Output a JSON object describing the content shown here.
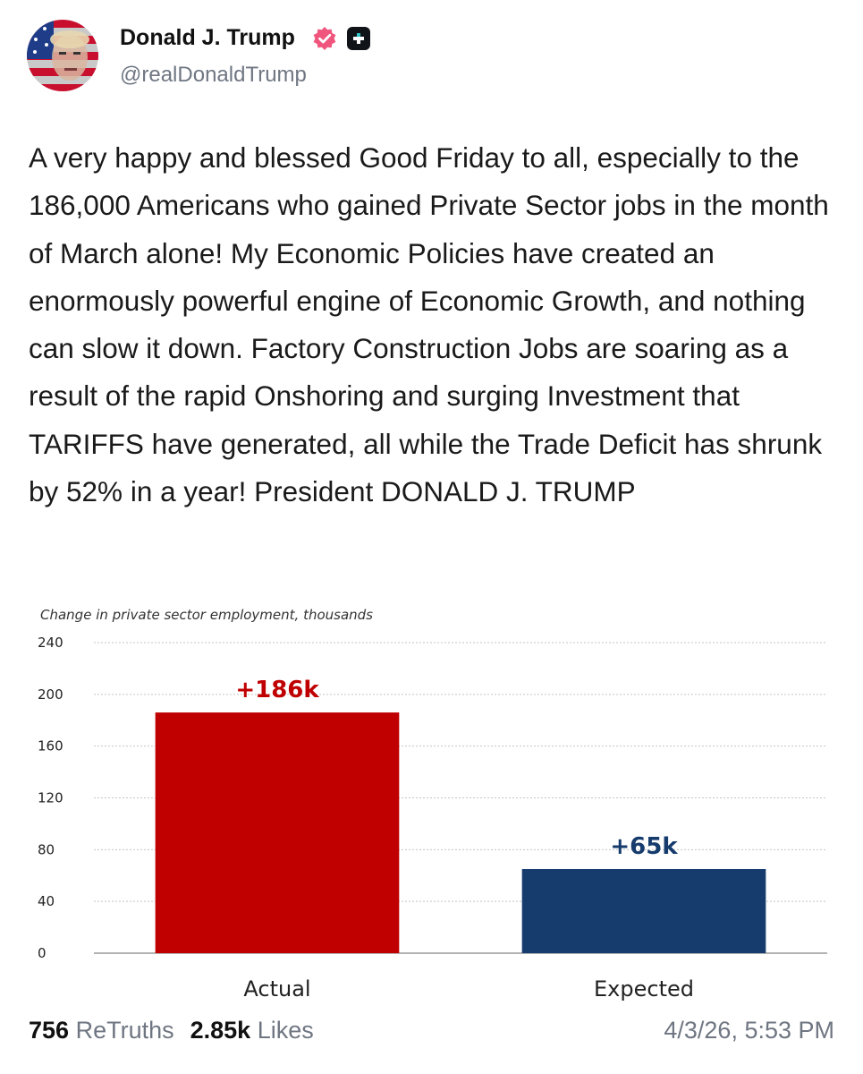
{
  "author": {
    "name": "Donald J. Trump",
    "handle": "@realDonaldTrump",
    "verified_icon": "verified-badge-icon",
    "plus_icon": "plus-badge-icon",
    "verified_color": "#f0567d"
  },
  "post": {
    "text": "A very happy and blessed Good Friday to all, especially to the 186,000 Americans who gained Private Sector jobs in the month of March alone! My Economic Policies have created an enormously powerful engine of Economic Growth, and nothing can slow it down. Factory Construction Jobs are soaring as a result of the rapid Onshoring and surging Investment that TARIFFS have generated, all while the Trade Deficit has shrunk by 52% in a year! President DONALD J. TRUMP"
  },
  "chart_data": {
    "type": "bar",
    "title": "Change in private sector employment,  thousands",
    "categories": [
      "Actual",
      "Expected"
    ],
    "values": [
      186,
      65
    ],
    "data_labels": [
      "+186k",
      "+65k"
    ],
    "colors": [
      "#c00000",
      "#163b6d"
    ],
    "label_colors": [
      "#c00000",
      "#163b6d"
    ],
    "ylim": [
      0,
      240
    ],
    "yticks": [
      0,
      40,
      80,
      120,
      160,
      200,
      240
    ],
    "grid": true,
    "xlabel": "",
    "ylabel": ""
  },
  "stats": {
    "retruths_count": "756",
    "retruths_label": "ReTruths",
    "likes_count": "2.85k",
    "likes_label": "Likes",
    "timestamp": "4/3/26, 5:53 PM"
  }
}
